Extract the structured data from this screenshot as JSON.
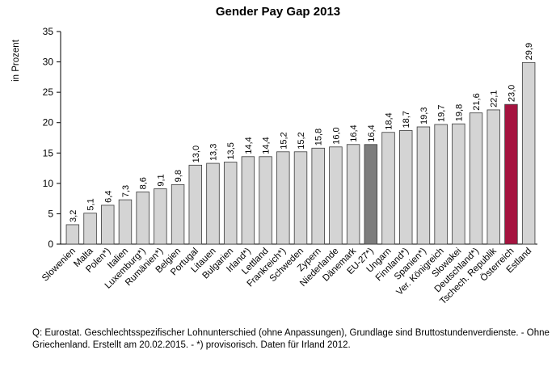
{
  "chart_data": {
    "type": "bar",
    "title": "Gender Pay Gap 2013",
    "ylabel": "in Prozent",
    "xlabel": "",
    "ylim": [
      0,
      35
    ],
    "yticks": [
      0,
      5,
      10,
      15,
      20,
      25,
      30,
      35
    ],
    "grid": false,
    "legend": "none",
    "categories": [
      "Slowenien",
      "Malta",
      "Polen*)",
      "Italien",
      "Luxemburg*)",
      "Rumänien*)",
      "Belgien",
      "Portugal",
      "Litauen",
      "Bulgarien",
      "Irland*)",
      "Lettland",
      "Frankreich*)",
      "Schweden",
      "Zypern",
      "Niederlande",
      "Dänemark",
      "EU-27*)",
      "Ungarn",
      "Finnland*)",
      "Spanien*)",
      "Ver. Königreich",
      "Slowakei",
      "Deutschland*)",
      "Tschech. Republik",
      "Österreich",
      "Estland"
    ],
    "values": [
      3.2,
      5.1,
      6.4,
      7.3,
      8.6,
      9.1,
      9.8,
      13.0,
      13.3,
      13.5,
      14.4,
      14.4,
      15.2,
      15.2,
      15.8,
      16.0,
      16.4,
      16.4,
      18.4,
      18.7,
      19.3,
      19.7,
      19.8,
      21.6,
      22.1,
      23.0,
      29.9
    ],
    "value_labels": [
      "3,2",
      "5,1",
      "6,4",
      "7,3",
      "8,6",
      "9,1",
      "9,8",
      "13,0",
      "13,3",
      "13,5",
      "14,4",
      "14,4",
      "15,2",
      "15,2",
      "15,8",
      "16,0",
      "16,4",
      "16,4",
      "18,4",
      "18,7",
      "19,3",
      "19,7",
      "19,8",
      "21,6",
      "22,1",
      "23,0",
      "29,9"
    ],
    "colors": {
      "default": "#d4d4d4",
      "highlight_eu": "#7d7d7d",
      "highlight_at": "#a5133f",
      "outline": "#3a3a3a"
    },
    "highlights": {
      "EU-27*)": "highlight_eu",
      "Österreich": "highlight_at"
    }
  },
  "source_note": "Q: Eurostat. Geschlechtsspezifischer Lohnunterschied (ohne Anpassungen), Grundlage sind Bruttostundenverdienste. - Ohne Griechenland. Erstellt am 20.02.2015. - *) provisorisch. Daten für Irland 2012."
}
